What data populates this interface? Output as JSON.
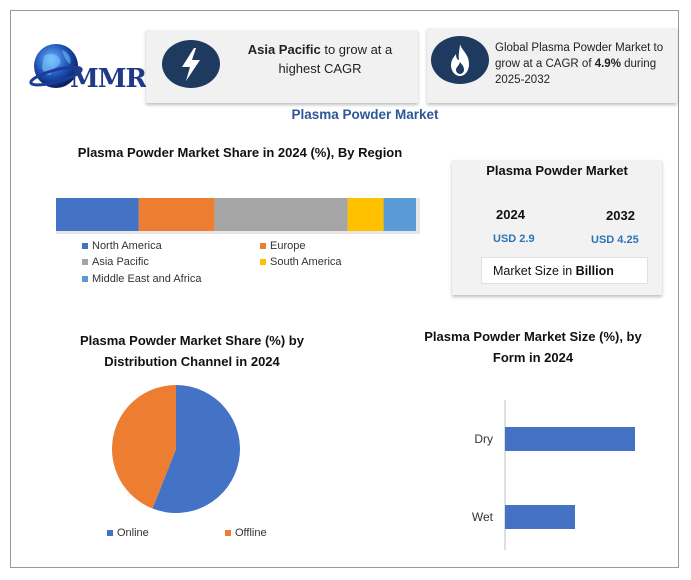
{
  "logo": {
    "text": "MMR"
  },
  "highlight_left": {
    "bold": "Asia Pacific",
    "rest": " to grow at a highest CAGR"
  },
  "highlight_right": {
    "pre": "Global Plasma Powder Market to grow at a CAGR of ",
    "bold": "4.9%",
    "post": " during 2025-2032"
  },
  "main_title": "Plasma Powder Market",
  "stats": {
    "title": "Plasma Powder Market",
    "year1": "2024",
    "value1": "USD 2.9",
    "year2": "2032",
    "value2": "USD 4.25",
    "size_label_pre": "Market Size in ",
    "size_label_bold": "Billion"
  },
  "colors": {
    "north_america": "#4472c4",
    "europe": "#ed7d31",
    "asia_pacific": "#a5a5a5",
    "south_america": "#ffc000",
    "mea": "#5b9bd5",
    "online": "#4472c4",
    "offline": "#ed7d31",
    "bar": "#4472c4",
    "brand": "#203a8a",
    "title": "#2e5797"
  },
  "chart_data": [
    {
      "type": "bar",
      "title": "Plasma Powder Market Share in 2024 (%), By Region",
      "stacked": true,
      "orientation": "horizontal",
      "series": [
        {
          "name": "North America",
          "values": [
            23
          ]
        },
        {
          "name": "Europe",
          "values": [
            21
          ]
        },
        {
          "name": "Asia Pacific",
          "values": [
            37
          ]
        },
        {
          "name": "South America",
          "values": [
            10
          ]
        },
        {
          "name": "Middle East and Africa",
          "values": [
            9
          ]
        }
      ],
      "legend": "bottom"
    },
    {
      "type": "pie",
      "title": "Plasma Powder Market  Share (%) by Distribution Channel in 2024",
      "categories": [
        "Online",
        "Offline"
      ],
      "values": [
        56,
        44
      ],
      "legend": "bottom"
    },
    {
      "type": "bar",
      "title": "Plasma Powder Market Size (%), by Form in 2024",
      "orientation": "horizontal",
      "categories": [
        "Dry",
        "Wet"
      ],
      "values": [
        65,
        35
      ]
    }
  ]
}
